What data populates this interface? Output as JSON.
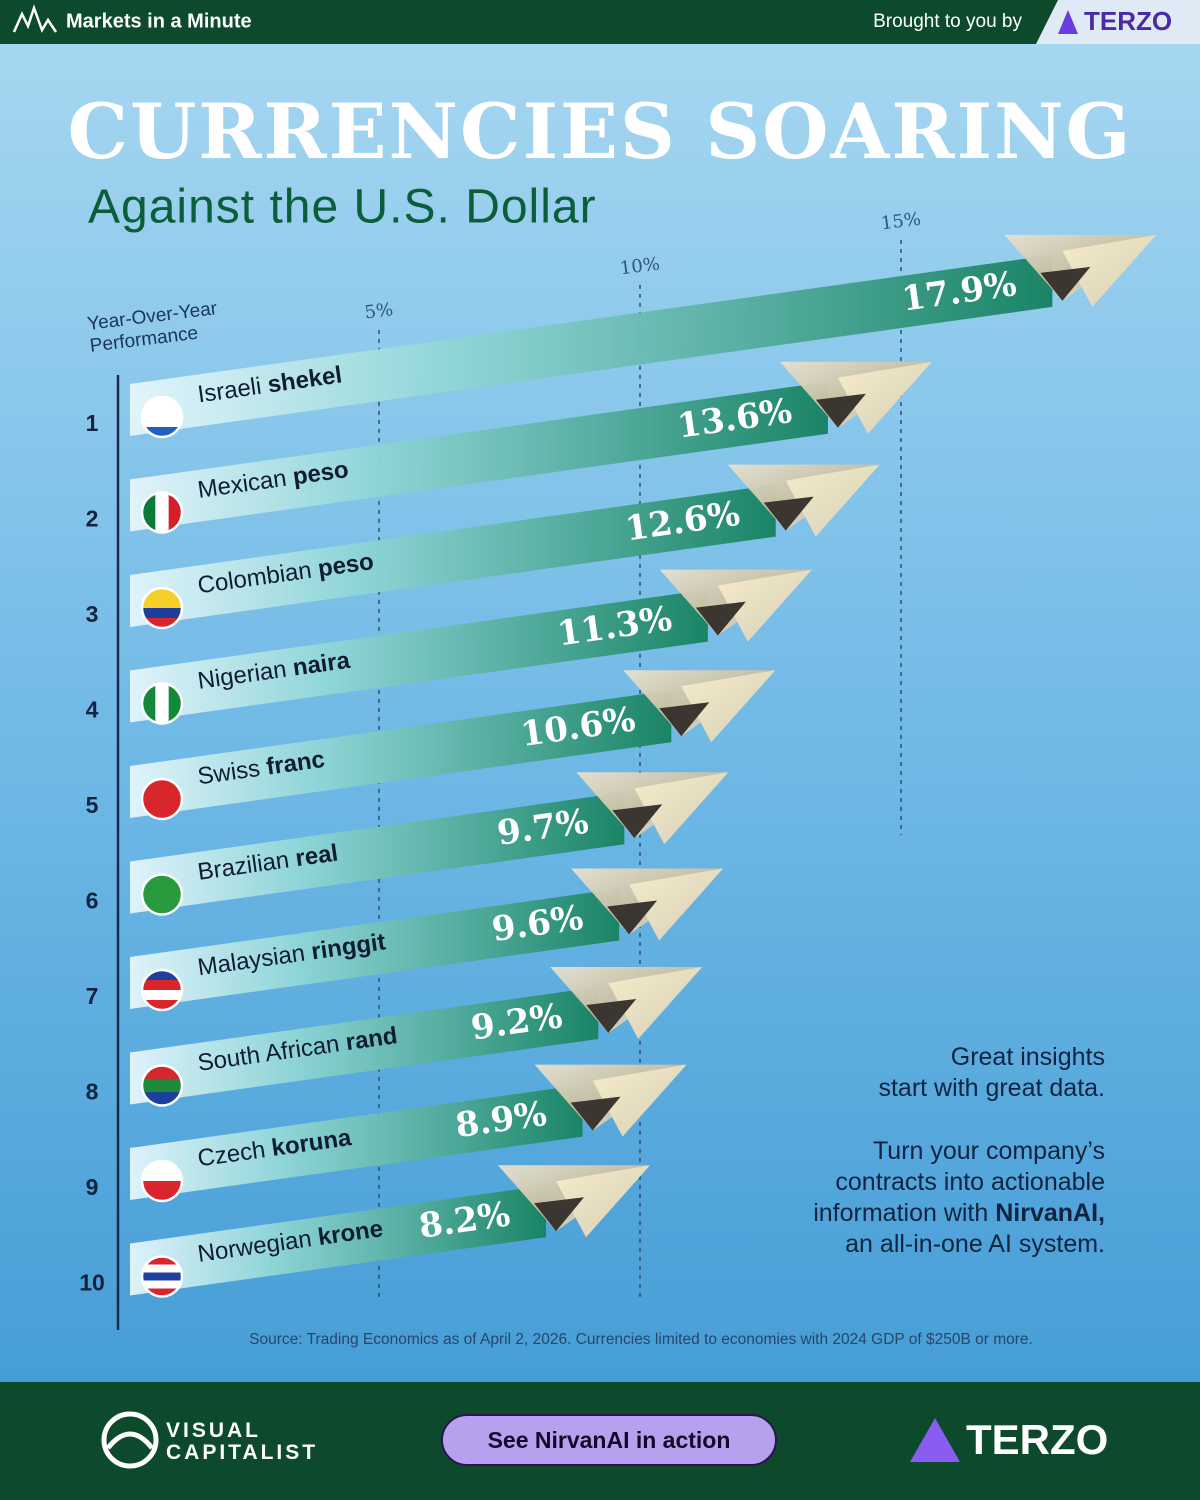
{
  "header": {
    "series_name": "Markets in a Minute",
    "sponsor_text": "Brought to you by",
    "sponsor": "TERZO"
  },
  "chart_data": {
    "type": "bar",
    "title": "CURRENCIES SOARING",
    "subtitle": "Against the U.S. Dollar",
    "x_label": "Year-Over-Year Performance",
    "ranks": [
      1,
      2,
      3,
      4,
      5,
      6,
      7,
      8,
      9,
      10
    ],
    "categories": [
      "Israeli shekel",
      "Mexican peso",
      "Colombian peso",
      "Nigerian naira",
      "Swiss franc",
      "Brazilian real",
      "Malaysian ringgit",
      "South African rand",
      "Czech koruna",
      "Norwegian krone"
    ],
    "values": [
      17.9,
      13.6,
      12.6,
      11.3,
      10.6,
      9.7,
      9.6,
      9.2,
      8.9,
      8.2
    ],
    "value_labels": [
      "17.9%",
      "13.6%",
      "12.6%",
      "11.3%",
      "10.6%",
      "9.7%",
      "9.6%",
      "9.2%",
      "8.9%",
      "8.2%"
    ],
    "color": "#1a8466",
    "xlim": [
      0,
      20
    ],
    "xticks": [
      {
        "value": 5,
        "label": "5%"
      },
      {
        "value": 10,
        "label": "10%"
      },
      {
        "value": 15,
        "label": "15%"
      }
    ],
    "grid": true,
    "source": "Source: Trading Economics as of April 2, 2026. Currencies limited to economies with 2024 GDP of $250B or more."
  },
  "ad": {
    "headline": [
      "Great insights",
      "start with great data."
    ],
    "body_lines": [
      "Turn your company’s",
      "contracts into actionable",
      "information with",
      "an all-in-one AI system."
    ],
    "brand": "NirvanAI,"
  },
  "footer": {
    "publisher": "VISUAL CAPITALIST",
    "button": "See NirvanAI in action",
    "sponsor": "TERZO"
  }
}
